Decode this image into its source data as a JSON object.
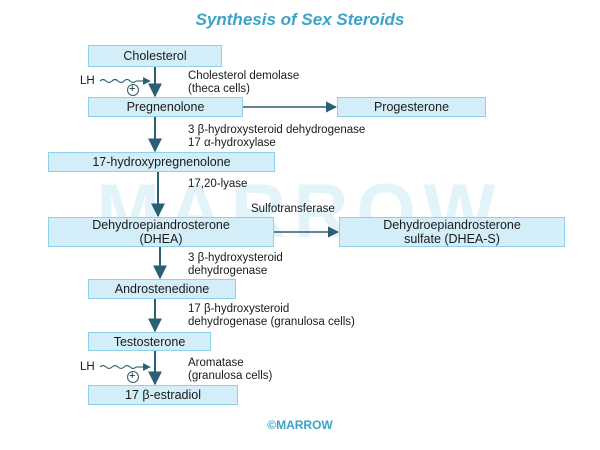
{
  "title": "Synthesis of Sex Steroids",
  "watermark": "MARROW",
  "copyright": "©MARROW",
  "nodes": {
    "cholesterol": "Cholesterol",
    "pregnenolone": "Pregnenolone",
    "progesterone": "Progesterone",
    "hydroxypregnenolone": "17-hydroxypregnenolone",
    "dhea_line1": "Dehydroepiandrosterone",
    "dhea_line2": "(DHEA)",
    "dheas_line1": "Dehydroepiandrosterone",
    "dheas_line2": "sulfate (DHEA-S)",
    "androstenedione": "Androstenedione",
    "testosterone": "Testosterone",
    "estradiol": "17 β-estradiol"
  },
  "enzymes": {
    "demolase_line1": "Cholesterol demolase",
    "demolase_line2": "(theca cells)",
    "hsd3_line1": "3 β-hydroxysteroid dehydrogenase",
    "hydroxylase17": "17 α-hydroxylase",
    "lyase": "17,20-lyase",
    "sulfotransferase": "Sulfotransferase",
    "hsd3b_line1": "3 β-hydroxysteroid",
    "hsd3b_line2": "dehydrogenase",
    "hsd17_line1": "17 β-hydroxysteroid",
    "hsd17_line2": "dehydrogenase (granulosa cells)",
    "aromatase_line1": "Aromatase",
    "aromatase_line2": "(granulosa cells)"
  },
  "stimulators": {
    "lh_top": "LH",
    "lh_bottom": "LH",
    "plus_top": "+",
    "plus_bottom": "+"
  },
  "colors": {
    "title": "#3aa3c9",
    "box_fill": "#d3eef8",
    "box_border": "#8fd0ea",
    "arrow": "#2b5f73"
  }
}
